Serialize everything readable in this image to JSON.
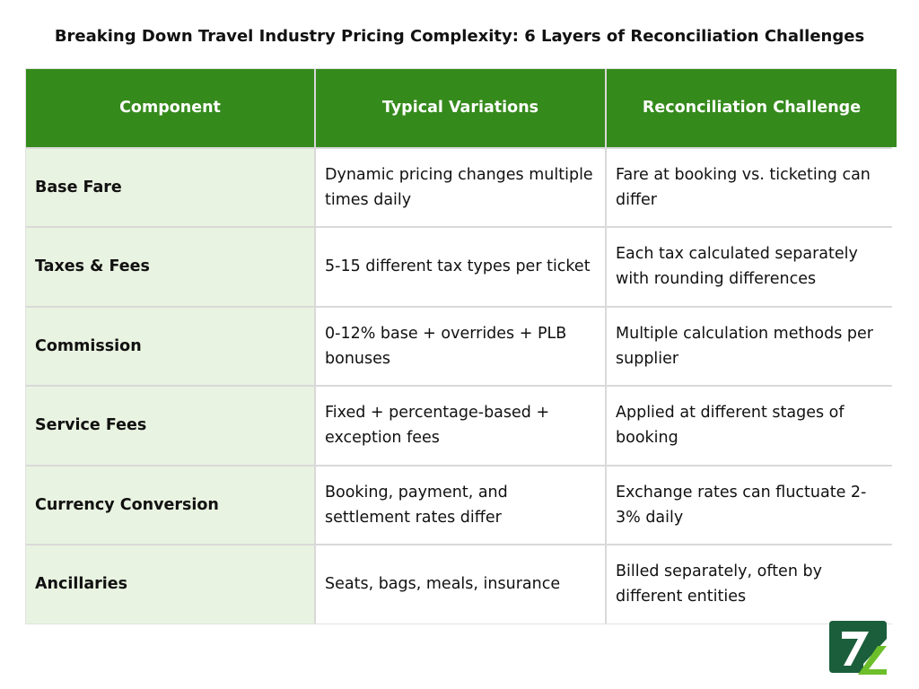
{
  "header": {
    "title": "Breaking Down Travel Industry Pricing Complexity: 6 Layers of Reconciliation Challenges"
  },
  "table": {
    "headers": [
      "Component",
      "Typical Variations",
      "Reconciliation Challenge"
    ],
    "rows": [
      [
        "Base Fare",
        "Dynamic pricing changes multiple times daily",
        "Fare at booking vs. ticketing can differ"
      ],
      [
        "Taxes & Fees",
        "5-15 different tax types per ticket",
        "Each tax calculated separately with rounding differences"
      ],
      [
        "Commission",
        "0-12% base + overrides + PLB bonuses",
        "Multiple calculation methods per supplier"
      ],
      [
        "Service Fees",
        "Fixed + percentage-based + exception fees",
        "Applied at different stages of booking"
      ],
      [
        "Currency Conversion",
        "Booking, payment, and settlement rates differ",
        "Exchange rates can fluctuate 2-3% daily"
      ],
      [
        "Ancillaries",
        "Seats, bags, meals, insurance",
        "Billed separately, often by different entities"
      ]
    ]
  }
}
